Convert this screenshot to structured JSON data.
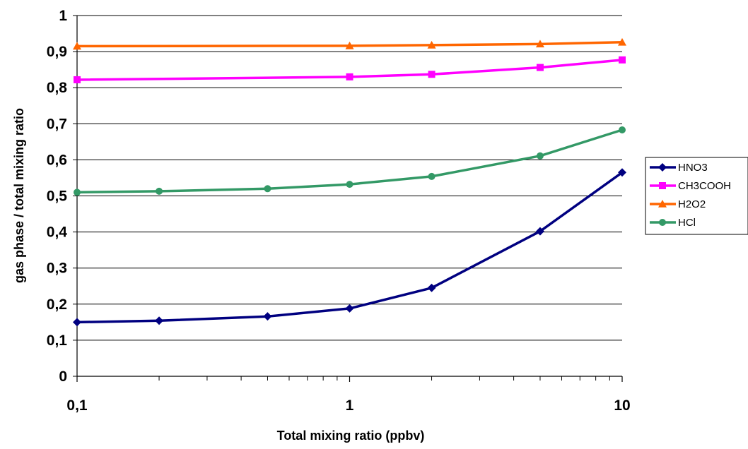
{
  "chart_data": {
    "type": "line",
    "title": "",
    "xlabel": "Total mixing ratio (ppbv)",
    "ylabel": "gas phase / total mixing ratio",
    "x_scale": "log",
    "xlim": [
      0.1,
      10
    ],
    "ylim": [
      0,
      1
    ],
    "x_ticks": [
      0.1,
      1,
      10
    ],
    "x_tick_labels": [
      "0,1",
      "1",
      "10"
    ],
    "y_ticks": [
      0,
      0.1,
      0.2,
      0.3,
      0.4,
      0.5,
      0.6,
      0.7,
      0.8,
      0.9,
      1
    ],
    "y_tick_labels": [
      "0",
      "0,1",
      "0,2",
      "0,3",
      "0,4",
      "0,5",
      "0,6",
      "0,7",
      "0,8",
      "0,9",
      "1"
    ],
    "grid": "horizontal",
    "legend_position": "right",
    "x": [
      0.1,
      0.2,
      0.5,
      1,
      2,
      5,
      10
    ],
    "series": [
      {
        "name": "HNO3",
        "color": "#000080",
        "marker": "diamond",
        "values": [
          0.15,
          0.154,
          0.166,
          0.188,
          0.245,
          0.402,
          0.565
        ]
      },
      {
        "name": "CH3COOH",
        "color": "#FF00FF",
        "marker": "square",
        "values": [
          0.822,
          null,
          null,
          0.83,
          0.837,
          0.856,
          0.877
        ]
      },
      {
        "name": "H2O2",
        "color": "#FF6600",
        "marker": "triangle",
        "values": [
          0.915,
          null,
          null,
          0.916,
          0.918,
          0.921,
          0.926
        ]
      },
      {
        "name": "HCl",
        "color": "#339966",
        "marker": "circle",
        "values": [
          0.51,
          0.513,
          0.52,
          0.532,
          0.554,
          0.611,
          0.683
        ]
      }
    ]
  }
}
